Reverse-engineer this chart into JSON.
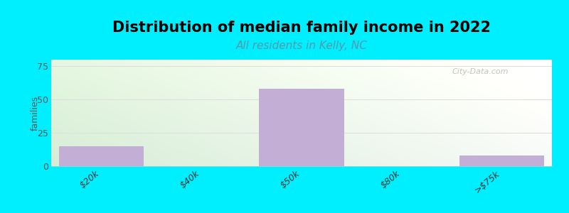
{
  "title": "Distribution of median family income in 2022",
  "subtitle": "All residents in Kelly, NC",
  "categories": [
    "$20k",
    "$40k",
    "$50k",
    "$80k",
    ">$75k"
  ],
  "values": [
    15,
    0,
    58,
    0,
    8
  ],
  "bar_color": "#c3aed6",
  "ylabel": "families",
  "yticks": [
    0,
    25,
    50,
    75
  ],
  "ylim": [
    0,
    80
  ],
  "background_color": "#00efff",
  "plot_bg_color_topleft": "#d8ecd8",
  "plot_bg_color_right": "#f8f8f8",
  "title_fontsize": 15,
  "subtitle_fontsize": 11,
  "subtitle_color": "#5599aa",
  "watermark": "City-Data.com",
  "bar_width": 0.85
}
